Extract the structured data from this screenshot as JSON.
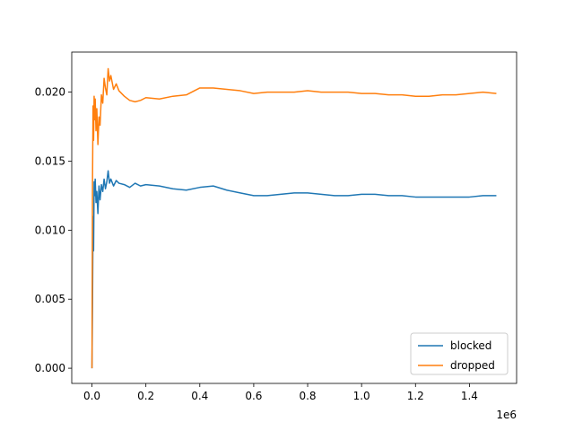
{
  "chart_data": {
    "type": "line",
    "title": "",
    "xlabel": "",
    "ylabel": "",
    "x_offset_label": "1e6",
    "xlim": [
      -0.075,
      1.575
    ],
    "ylim": [
      -0.0011,
      0.0229
    ],
    "x_ticks": [
      0.0,
      0.2,
      0.4,
      0.6,
      0.8,
      1.0,
      1.2,
      1.4
    ],
    "x_tick_labels": [
      "0.0",
      "0.2",
      "0.4",
      "0.6",
      "0.8",
      "1.0",
      "1.2",
      "1.4"
    ],
    "y_ticks": [
      0.0,
      0.005,
      0.01,
      0.015,
      0.02
    ],
    "y_tick_labels": [
      "0.000",
      "0.005",
      "0.010",
      "0.015",
      "0.020"
    ],
    "grid": false,
    "legend_position": "lower right",
    "series": [
      {
        "name": "blocked",
        "color": "#1f77b4",
        "x": [
          0.0,
          0.002,
          0.004,
          0.006,
          0.008,
          0.01,
          0.012,
          0.015,
          0.018,
          0.022,
          0.026,
          0.03,
          0.035,
          0.04,
          0.045,
          0.05,
          0.055,
          0.06,
          0.065,
          0.07,
          0.08,
          0.09,
          0.1,
          0.12,
          0.14,
          0.16,
          0.18,
          0.2,
          0.25,
          0.3,
          0.35,
          0.4,
          0.45,
          0.5,
          0.55,
          0.6,
          0.65,
          0.7,
          0.75,
          0.8,
          0.85,
          0.9,
          0.95,
          1.0,
          1.05,
          1.1,
          1.15,
          1.2,
          1.25,
          1.3,
          1.35,
          1.4,
          1.45,
          1.5
        ],
        "y": [
          0.0,
          0.0045,
          0.011,
          0.0085,
          0.0135,
          0.0125,
          0.0137,
          0.012,
          0.0128,
          0.0112,
          0.0132,
          0.0122,
          0.0133,
          0.0128,
          0.0137,
          0.013,
          0.0135,
          0.0143,
          0.0134,
          0.0137,
          0.0132,
          0.0136,
          0.0134,
          0.0133,
          0.0131,
          0.0134,
          0.0132,
          0.0133,
          0.0132,
          0.013,
          0.0129,
          0.0131,
          0.0132,
          0.0129,
          0.0127,
          0.0125,
          0.0125,
          0.0126,
          0.0127,
          0.0127,
          0.0126,
          0.0125,
          0.0125,
          0.0126,
          0.0126,
          0.0125,
          0.0125,
          0.0124,
          0.0124,
          0.0124,
          0.0124,
          0.0124,
          0.0125,
          0.0125
        ]
      },
      {
        "name": "dropped",
        "color": "#ff7f0e",
        "x": [
          0.0,
          0.002,
          0.004,
          0.006,
          0.008,
          0.01,
          0.012,
          0.015,
          0.018,
          0.022,
          0.026,
          0.03,
          0.035,
          0.04,
          0.045,
          0.05,
          0.055,
          0.06,
          0.065,
          0.07,
          0.08,
          0.09,
          0.1,
          0.12,
          0.14,
          0.16,
          0.18,
          0.2,
          0.25,
          0.3,
          0.35,
          0.4,
          0.45,
          0.5,
          0.55,
          0.6,
          0.65,
          0.7,
          0.75,
          0.8,
          0.85,
          0.9,
          0.95,
          1.0,
          1.05,
          1.1,
          1.15,
          1.2,
          1.25,
          1.3,
          1.35,
          1.4,
          1.45,
          1.5
        ],
        "y": [
          0.0,
          0.0135,
          0.019,
          0.0165,
          0.0197,
          0.018,
          0.0195,
          0.0172,
          0.0188,
          0.0162,
          0.0182,
          0.0176,
          0.0198,
          0.0192,
          0.021,
          0.0203,
          0.0198,
          0.0217,
          0.0208,
          0.0212,
          0.0202,
          0.0206,
          0.0201,
          0.0197,
          0.0194,
          0.0193,
          0.0194,
          0.0196,
          0.0195,
          0.0197,
          0.0198,
          0.0203,
          0.0203,
          0.0202,
          0.0201,
          0.0199,
          0.02,
          0.02,
          0.02,
          0.0201,
          0.02,
          0.02,
          0.02,
          0.0199,
          0.0199,
          0.0198,
          0.0198,
          0.0197,
          0.0197,
          0.0198,
          0.0198,
          0.0199,
          0.02,
          0.0199
        ]
      }
    ]
  }
}
